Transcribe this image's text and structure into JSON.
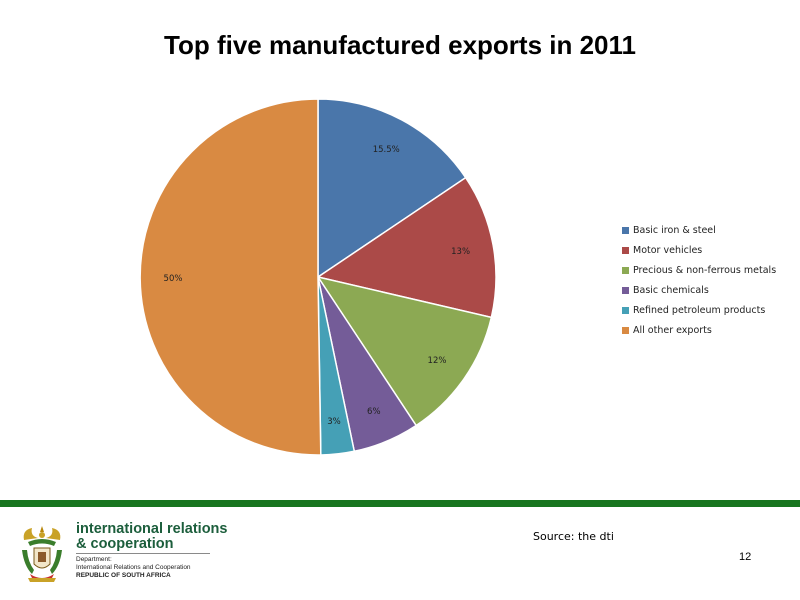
{
  "chart_data": {
    "type": "pie",
    "title": "Top five manufactured exports in 2011",
    "categories": [
      "Basic iron & steel",
      "Motor vehicles",
      "Precious & non-ferrous metals",
      "Basic chemicals",
      "Refined petroleum products",
      "All other exports"
    ],
    "values": [
      15.5,
      13,
      12,
      6,
      3,
      50
    ],
    "labels": [
      "15.5%",
      "13%",
      "12%",
      "6%",
      "3%",
      "50%"
    ],
    "colors": [
      "#4a76aa",
      "#ab4a48",
      "#8ca953",
      "#745c98",
      "#45a0b6",
      "#d98a42"
    ],
    "legend_position": "right",
    "start_angle": "12 o'clock, clockwise"
  },
  "footer": {
    "org_line1": "international relations",
    "org_line2": "& cooperation",
    "dept_line1": "Department:",
    "dept_line2": "International Relations and Cooperation",
    "dept_line3": "REPUBLIC OF SOUTH AFRICA",
    "source": "Source: the dti",
    "page_number": "12",
    "bar_color": "#18751f",
    "logo_icon": "south-africa-coat-of-arms-icon"
  }
}
